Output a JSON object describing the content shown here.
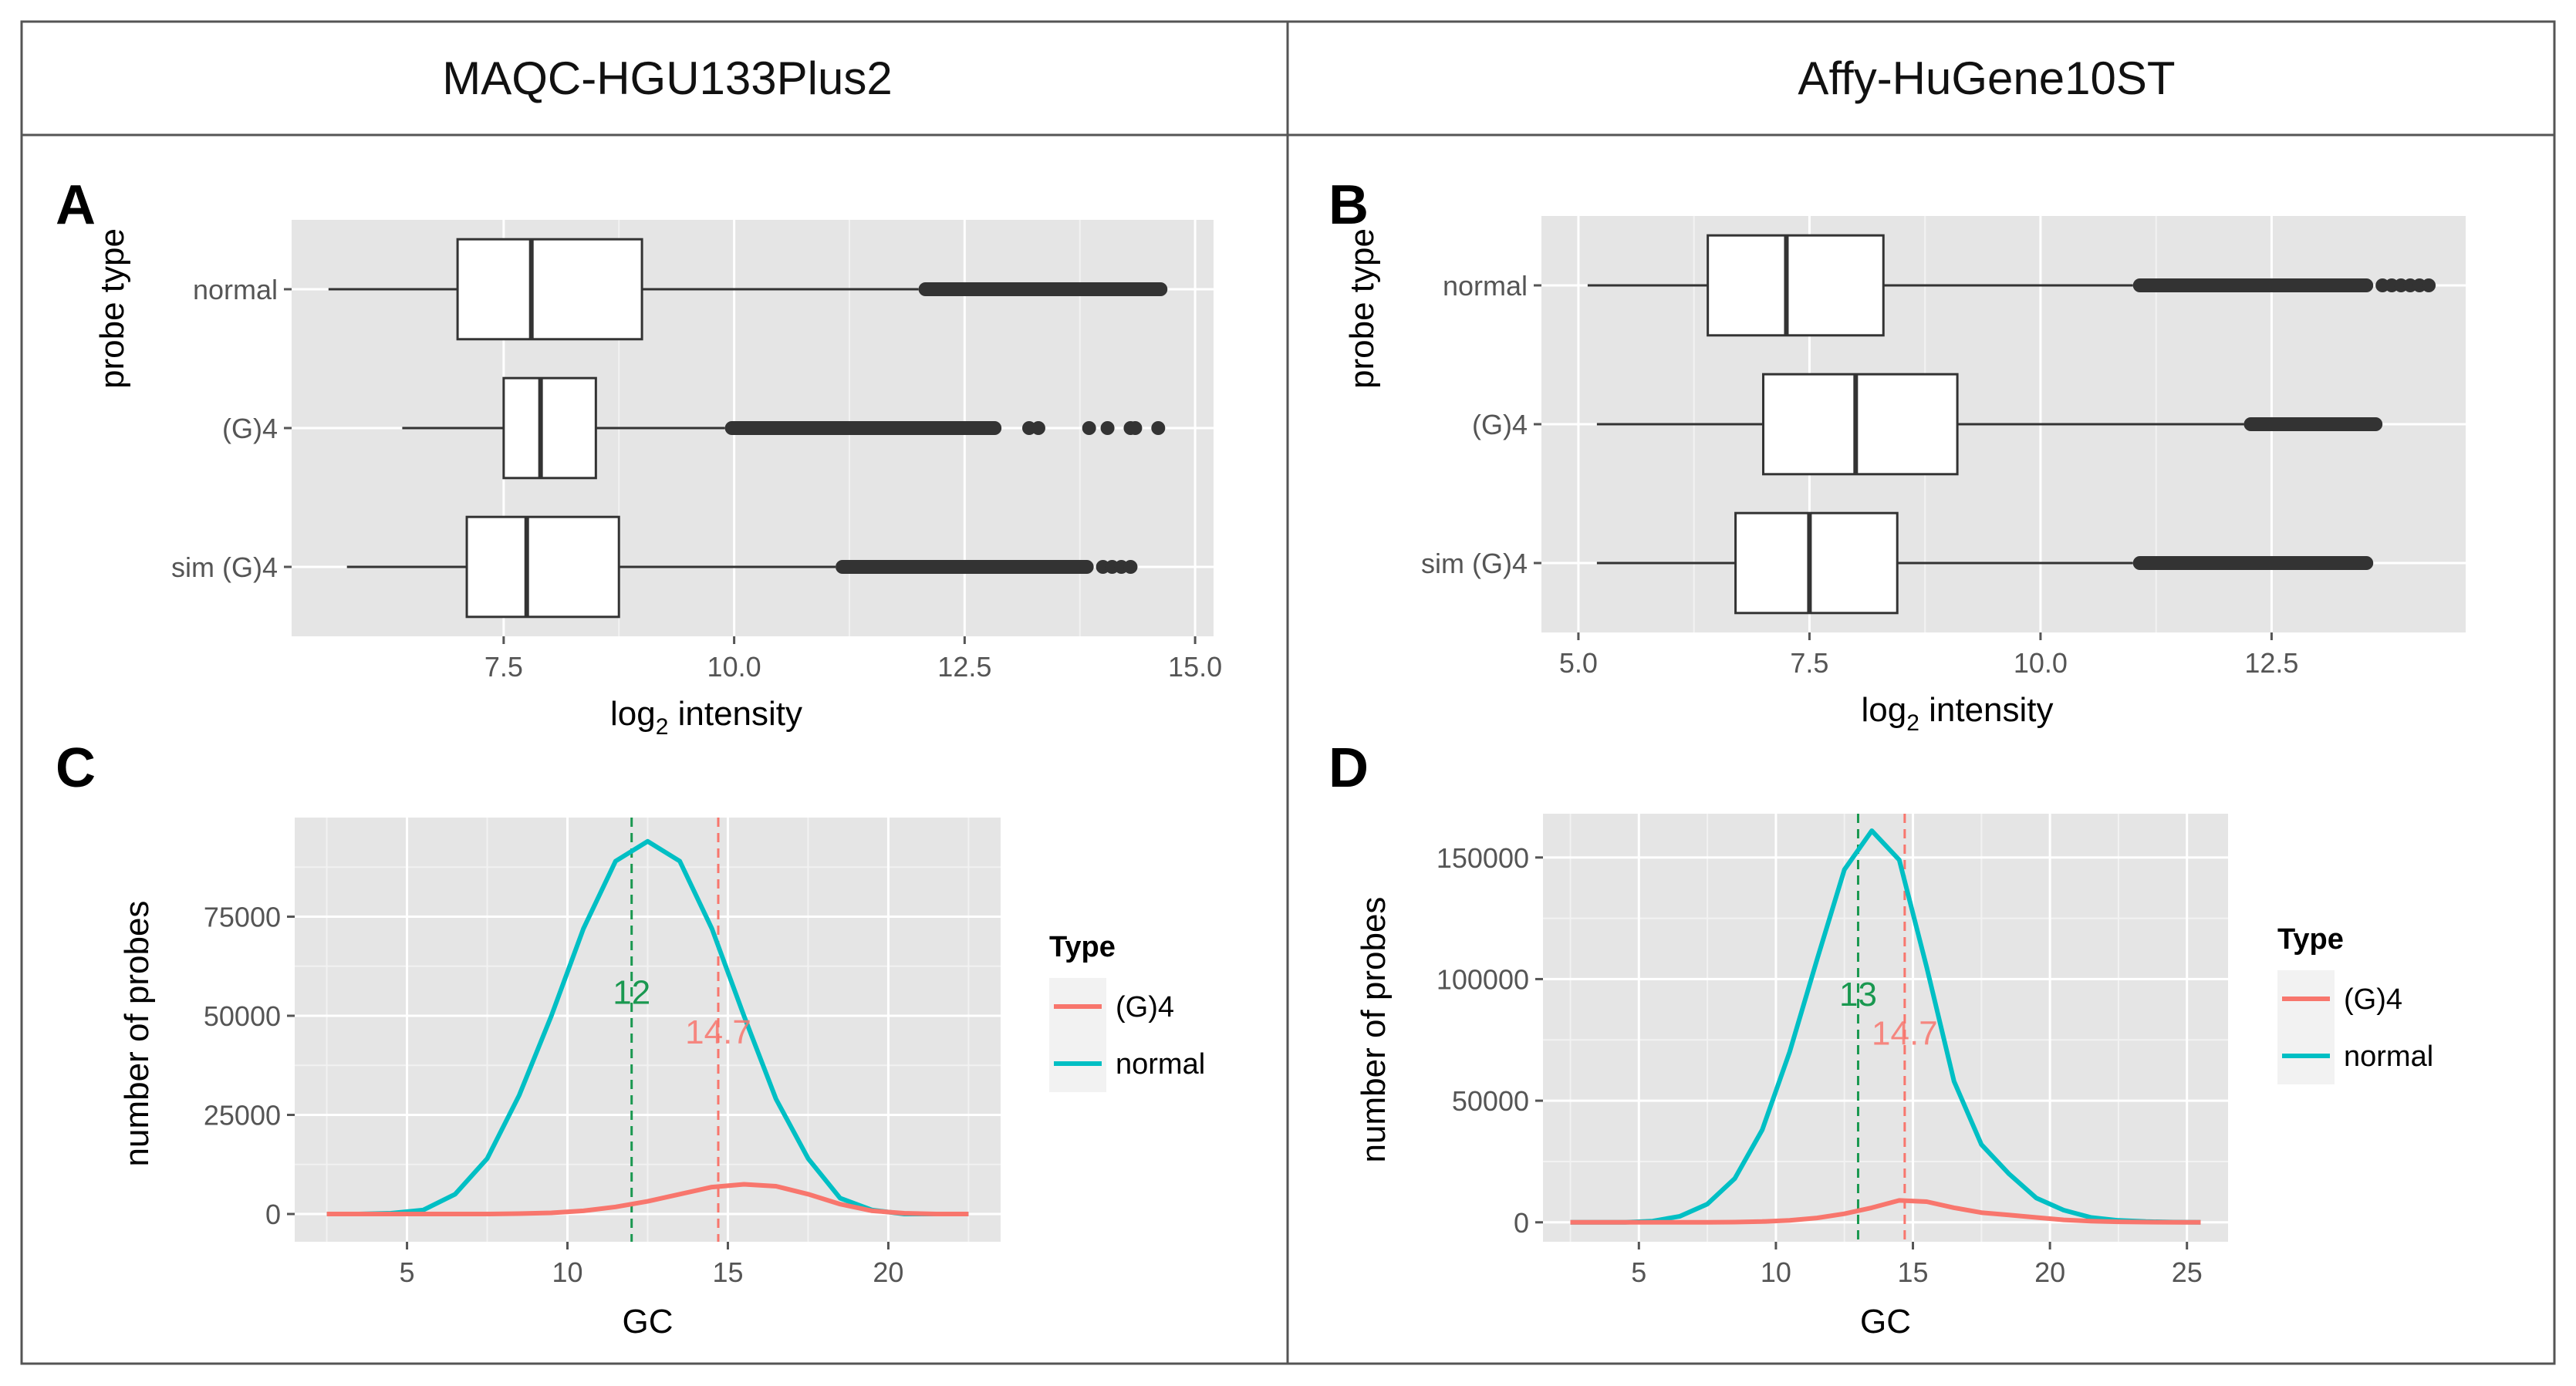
{
  "columns": [
    {
      "title": "MAQC-HGU133Plus2"
    },
    {
      "title": "Affy-HuGene10ST"
    }
  ],
  "colors": {
    "g4": "#F8766D",
    "normal": "#00BFC4",
    "mean_normal": "#1A9850",
    "panel_bg": "#E5E5E5",
    "grid": "#FFFFFF",
    "border": "#555555"
  },
  "chart_data": [
    {
      "panel": "A",
      "type": "boxplot",
      "orientation": "horizontal",
      "xlabel": "log",
      "xlabel_sub": "2",
      "xlabel_rest": " intensity",
      "ylabel": "probe type",
      "xlim": [
        5.2,
        15.2
      ],
      "xticks": [
        7.5,
        10.0,
        12.5,
        15.0
      ],
      "xtick_labels": [
        "7.5",
        "10.0",
        "12.5",
        "15.0"
      ],
      "categories": [
        "normal",
        "(G)4",
        "sim (G)4"
      ],
      "boxes": [
        {
          "name": "normal",
          "whisker_low": 5.6,
          "q1": 7.0,
          "median": 7.8,
          "q3": 9.0,
          "whisker_high": 12.0,
          "outlier_band": [
            12.0,
            14.7
          ],
          "outliers": []
        },
        {
          "name": "(G)4",
          "whisker_low": 6.4,
          "q1": 7.5,
          "median": 7.9,
          "q3": 8.5,
          "whisker_high": 9.9,
          "outlier_band": [
            9.9,
            12.9
          ],
          "outliers": [
            13.2,
            13.3,
            13.85,
            14.05,
            14.3,
            14.35,
            14.6
          ]
        },
        {
          "name": "sim (G)4",
          "whisker_low": 5.8,
          "q1": 7.1,
          "median": 7.75,
          "q3": 8.75,
          "whisker_high": 11.1,
          "outlier_band": [
            11.1,
            13.9
          ],
          "outliers": [
            14.0,
            14.1,
            14.2,
            14.3
          ]
        }
      ]
    },
    {
      "panel": "B",
      "type": "boxplot",
      "orientation": "horizontal",
      "xlabel": "log",
      "xlabel_sub": "2",
      "xlabel_rest": " intensity",
      "ylabel": "probe type",
      "xlim": [
        4.6,
        14.6
      ],
      "xticks": [
        5.0,
        7.5,
        10.0,
        12.5
      ],
      "xtick_labels": [
        "5.0",
        "7.5",
        "10.0",
        "12.5"
      ],
      "categories": [
        "normal",
        "(G)4",
        "sim (G)4"
      ],
      "boxes": [
        {
          "name": "normal",
          "whisker_low": 5.1,
          "q1": 6.4,
          "median": 7.25,
          "q3": 8.3,
          "whisker_high": 11.0,
          "outlier_band": [
            11.0,
            13.6
          ],
          "outliers": [
            13.7,
            13.8,
            13.9,
            14.0,
            14.1,
            14.2
          ]
        },
        {
          "name": "(G)4",
          "whisker_low": 5.2,
          "q1": 7.0,
          "median": 8.0,
          "q3": 9.1,
          "whisker_high": 12.2,
          "outlier_band": [
            12.2,
            13.7
          ],
          "outliers": []
        },
        {
          "name": "sim (G)4",
          "whisker_low": 5.2,
          "q1": 6.7,
          "median": 7.5,
          "q3": 8.45,
          "whisker_high": 11.0,
          "outlier_band": [
            11.0,
            13.6
          ],
          "outliers": []
        }
      ]
    },
    {
      "panel": "C",
      "type": "line",
      "xlabel": "GC",
      "ylabel": "number of probes",
      "xlim": [
        1.5,
        23.5
      ],
      "ylim": [
        -7000,
        100000
      ],
      "xticks": [
        5,
        10,
        15,
        20
      ],
      "xtick_labels": [
        "5",
        "10",
        "15",
        "20"
      ],
      "yticks": [
        0,
        25000,
        50000,
        75000
      ],
      "ytick_labels": [
        "0",
        "25000",
        "50000",
        "75000"
      ],
      "legend": {
        "title": "Type",
        "entries": [
          "(G)4",
          "normal"
        ]
      },
      "series": [
        {
          "name": "normal",
          "x": [
            2.5,
            3.5,
            4.5,
            5.5,
            6.5,
            7.5,
            8.5,
            9.5,
            10.5,
            11.5,
            12.5,
            13.5,
            14.5,
            15.5,
            16.5,
            17.5,
            18.5,
            19.5,
            20.5,
            21.5,
            22.5
          ],
          "y": [
            0,
            0,
            200,
            1000,
            5000,
            14000,
            30000,
            50000,
            72000,
            89000,
            94000,
            89000,
            72000,
            50000,
            29000,
            14000,
            4000,
            1000,
            0,
            0,
            0
          ]
        },
        {
          "name": "(G)4",
          "x": [
            2.5,
            3.5,
            4.5,
            5.5,
            6.5,
            7.5,
            8.5,
            9.5,
            10.5,
            11.5,
            12.5,
            13.5,
            14.5,
            15.5,
            16.5,
            17.5,
            18.5,
            19.5,
            20.5,
            21.5,
            22.5
          ],
          "y": [
            0,
            0,
            0,
            0,
            0,
            0,
            100,
            300,
            800,
            1800,
            3200,
            5000,
            6800,
            7500,
            7000,
            5000,
            2500,
            800,
            200,
            0,
            0
          ]
        }
      ],
      "vlines": [
        {
          "series": "normal",
          "x": 12,
          "label": "12",
          "label_y": 53000
        },
        {
          "series": "(G)4",
          "x": 14.7,
          "label": "14.7",
          "label_y": 43000
        }
      ]
    },
    {
      "panel": "D",
      "type": "line",
      "xlabel": "GC",
      "ylabel": "number of probes",
      "xlim": [
        1.5,
        26.5
      ],
      "ylim": [
        -8000,
        168000
      ],
      "xticks": [
        5,
        10,
        15,
        20,
        25
      ],
      "xtick_labels": [
        "5",
        "10",
        "15",
        "20",
        "25"
      ],
      "yticks": [
        0,
        50000,
        100000,
        150000
      ],
      "ytick_labels": [
        "0",
        "50000",
        "100000",
        "150000"
      ],
      "legend": {
        "title": "Type",
        "entries": [
          "(G)4",
          "normal"
        ]
      },
      "series": [
        {
          "name": "normal",
          "x": [
            2.5,
            3.5,
            4.5,
            5.5,
            6.5,
            7.5,
            8.5,
            9.5,
            10.5,
            11.5,
            12.5,
            13.5,
            14.5,
            15.5,
            16.5,
            17.5,
            18.5,
            19.5,
            20.5,
            21.5,
            22.5,
            23.5,
            24.5,
            25.5
          ],
          "y": [
            0,
            0,
            0,
            500,
            2500,
            7500,
            18000,
            38000,
            70000,
            108000,
            145000,
            161000,
            149000,
            105000,
            58000,
            32000,
            20000,
            10000,
            5000,
            2000,
            800,
            300,
            100,
            0
          ]
        },
        {
          "name": "(G)4",
          "x": [
            2.5,
            3.5,
            4.5,
            5.5,
            6.5,
            7.5,
            8.5,
            9.5,
            10.5,
            11.5,
            12.5,
            13.5,
            14.5,
            15.5,
            16.5,
            17.5,
            18.5,
            19.5,
            20.5,
            21.5,
            22.5,
            23.5,
            24.5,
            25.5
          ],
          "y": [
            0,
            0,
            0,
            0,
            0,
            0,
            100,
            300,
            800,
            1800,
            3500,
            6000,
            9000,
            8500,
            6000,
            4000,
            3000,
            2000,
            1000,
            500,
            200,
            100,
            0,
            0
          ]
        }
      ],
      "vlines": [
        {
          "series": "normal",
          "x": 13,
          "label": "13",
          "label_y": 89000
        },
        {
          "series": "(G)4",
          "x": 14.7,
          "label": "14.7",
          "label_y": 73000
        }
      ]
    }
  ]
}
